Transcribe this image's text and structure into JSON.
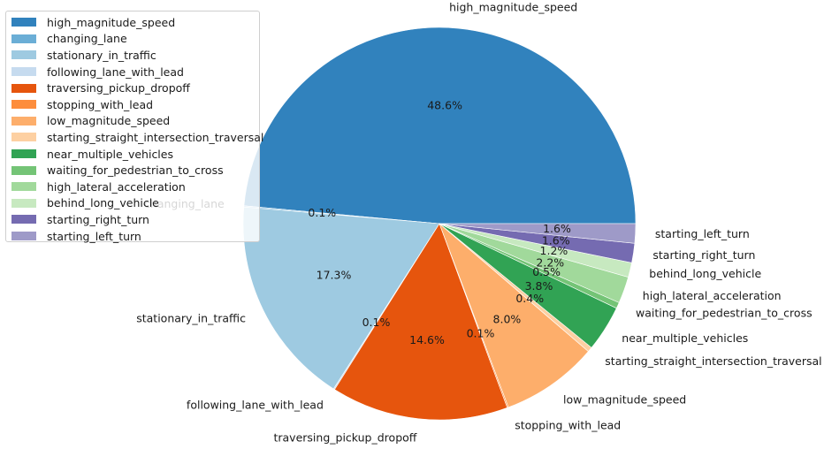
{
  "chart_data": {
    "type": "pie",
    "title": "",
    "legend_position": "upper-left",
    "categories": [
      "high_magnitude_speed",
      "changing_lane",
      "stationary_in_traffic",
      "following_lane_with_lead",
      "traversing_pickup_dropoff",
      "stopping_with_lead",
      "low_magnitude_speed",
      "starting_straight_intersection_traversal",
      "near_multiple_vehicles",
      "waiting_for_pedestrian_to_cross",
      "high_lateral_acceleration",
      "behind_long_vehicle",
      "starting_right_turn",
      "starting_left_turn"
    ],
    "values": [
      48.6,
      0.1,
      17.3,
      0.1,
      14.6,
      0.1,
      8.0,
      0.4,
      3.8,
      0.5,
      2.2,
      1.2,
      1.6,
      1.6
    ],
    "value_labels": [
      "48.6%",
      "0.1%",
      "17.3%",
      "0.1%",
      "14.6%",
      "0.1%",
      "8.0%",
      "0.4%",
      "3.8%",
      "0.5%",
      "2.2%",
      "1.2%",
      "1.6%",
      "1.6%"
    ],
    "colors": [
      "#3182bd",
      "#6baed6",
      "#9ecae1",
      "#c6dbef",
      "#e6550d",
      "#fd8d3c",
      "#fdae6b",
      "#fdd0a2",
      "#31a354",
      "#74c476",
      "#a1d99b",
      "#c7e9c0",
      "#756bb1",
      "#9e9ac8"
    ]
  }
}
